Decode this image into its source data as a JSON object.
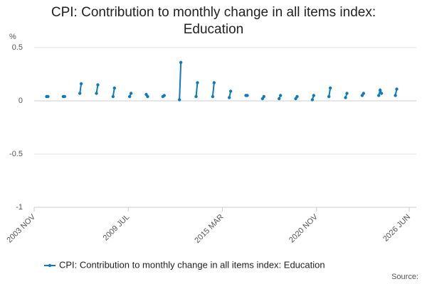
{
  "chart_data": {
    "type": "line",
    "title": "CPI: Contribution to monthly change in all items index: Education",
    "y_label": "%",
    "source": "Source:",
    "x": [
      "2004 AUG",
      "2004 SEP",
      "2005 AUG",
      "2005 SEP",
      "2006 AUG",
      "2006 SEP",
      "2007 AUG",
      "2007 SEP",
      "2008 AUG",
      "2008 SEP",
      "2009 AUG",
      "2009 SEP",
      "2010 AUG",
      "2010 SEP",
      "2011 AUG",
      "2011 SEP",
      "2012 AUG",
      "2012 SEP",
      "2013 AUG",
      "2013 SEP",
      "2014 AUG",
      "2014 SEP",
      "2015 AUG",
      "2015 SEP",
      "2016 AUG",
      "2016 SEP",
      "2017 AUG",
      "2017 SEP",
      "2018 AUG",
      "2018 SEP",
      "2019 AUG",
      "2019 SEP",
      "2020 AUG",
      "2020 SEP",
      "2021 AUG",
      "2021 SEP",
      "2022 AUG",
      "2022 SEP",
      "2023 AUG",
      "2023 SEP",
      "2024 AUG",
      "2024 SEP",
      "2024 OCT",
      "2025 AUG",
      "2025 SEP"
    ],
    "series": [
      {
        "name": "CPI: Contribution to monthly change in all items index: Education",
        "color": "#0f7bbd",
        "values": [
          0.04,
          0.04,
          0.04,
          0.04,
          0.07,
          0.16,
          0.07,
          0.15,
          0.04,
          0.12,
          0.04,
          0.07,
          0.06,
          0.04,
          0.04,
          0.05,
          0.01,
          0.36,
          0.04,
          0.17,
          0.04,
          0.17,
          0.03,
          0.09,
          0.05,
          0.05,
          0.02,
          0.04,
          0.02,
          0.05,
          0.02,
          0.04,
          0.01,
          0.05,
          0.04,
          0.12,
          0.03,
          0.07,
          0.05,
          0.07,
          0.05,
          0.1,
          0.07,
          0.05,
          0.11
        ]
      }
    ],
    "xlim": [
      "2003 NOV",
      "2026 JUN"
    ],
    "xticks": [
      "2003 NOV",
      "2009 JUL",
      "2015 MAR",
      "2020 NOV",
      "2026 JUN"
    ],
    "ylim": [
      -1,
      0.5
    ],
    "yticks": [
      0.5,
      0,
      -0.5,
      -1
    ],
    "grid": true,
    "legend": "bottom"
  }
}
